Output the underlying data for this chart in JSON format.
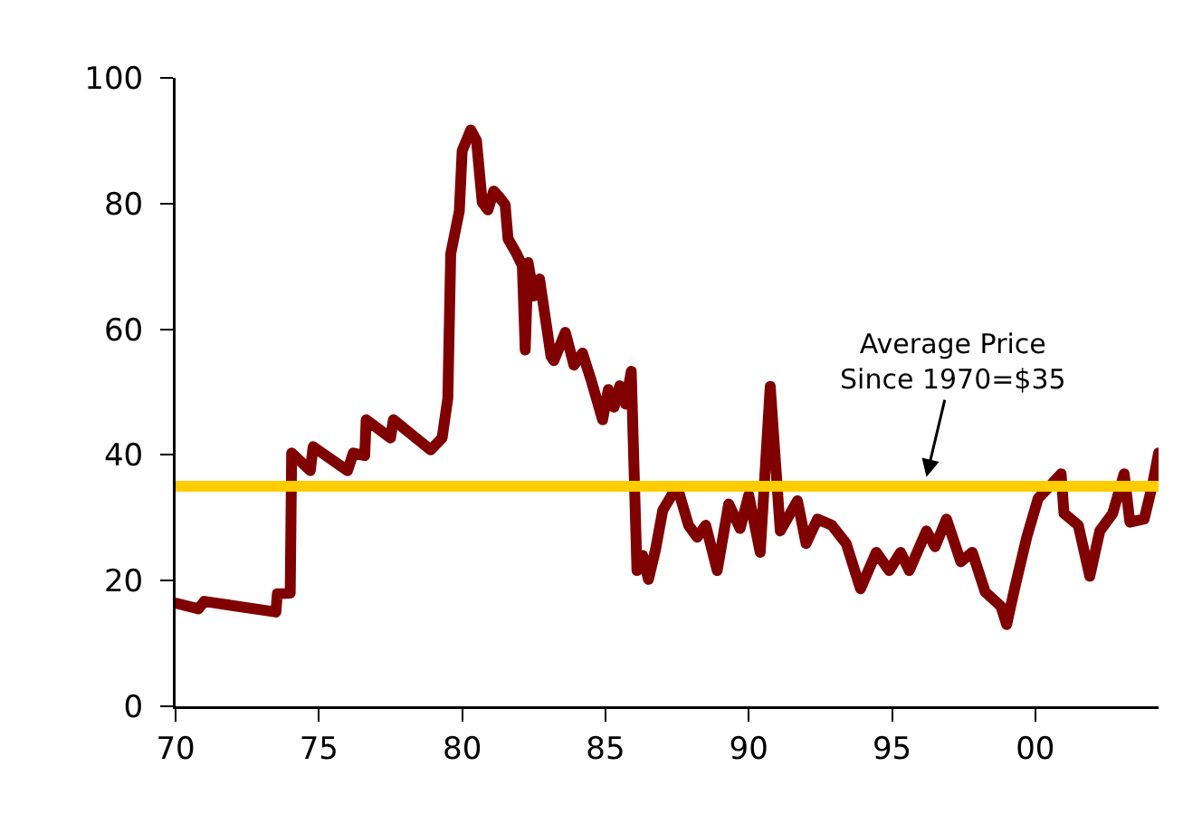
{
  "chart_data": {
    "type": "line",
    "x": [
      1970,
      1970.8,
      1971.0,
      1973.5,
      1973.55,
      1974.0,
      1974.05,
      1974.7,
      1974.8,
      1976.0,
      1976.2,
      1976.6,
      1976.65,
      1977.5,
      1977.6,
      1978.9,
      1979.3,
      1979.5,
      1979.6,
      1979.9,
      1980.0,
      1980.3,
      1980.5,
      1980.7,
      1980.9,
      1981.1,
      1981.3,
      1981.5,
      1981.6,
      1981.9,
      1982.1,
      1982.2,
      1982.3,
      1982.5,
      1982.7,
      1983.1,
      1983.2,
      1983.6,
      1983.9,
      1984.2,
      1984.5,
      1984.9,
      1985.1,
      1985.3,
      1985.5,
      1985.7,
      1985.9,
      1986.1,
      1986.3,
      1986.5,
      1986.75,
      1987.0,
      1987.5,
      1987.9,
      1988.2,
      1988.5,
      1988.9,
      1989.3,
      1989.7,
      1990.0,
      1990.4,
      1990.75,
      1991.1,
      1991.7,
      1992.0,
      1992.4,
      1992.9,
      1993.4,
      1993.9,
      1994.45,
      1994.9,
      1995.3,
      1995.6,
      1996.2,
      1996.5,
      1996.9,
      1997.4,
      1997.8,
      1998.25,
      1998.8,
      1999.0,
      1999.3,
      1999.7,
      2000.1,
      2000.6,
      2000.9,
      2001.0,
      2001.5,
      2001.9,
      2002.25,
      2002.7,
      2003.1,
      2003.3,
      2003.8,
      2004.1,
      2004.3
    ],
    "series": [
      {
        "color": "#800000",
        "values": [
          16.4,
          15.5,
          16.7,
          15,
          17.9,
          18,
          40.3,
          37.5,
          41.3,
          37.5,
          40.3,
          39.9,
          45.6,
          42.7,
          45.6,
          40.8,
          42.7,
          49,
          72,
          78.8,
          88.4,
          91.7,
          90,
          80.2,
          79,
          82,
          81,
          79.8,
          74.4,
          72,
          70.1,
          56.7,
          70.6,
          65.3,
          68,
          55.7,
          55,
          59.5,
          54.3,
          56.2,
          51.9,
          45.6,
          50.4,
          47.6,
          51,
          48.1,
          53.3,
          21.6,
          24,
          20.2,
          25,
          31.2,
          35,
          28.8,
          26.9,
          28.8,
          21.6,
          32.2,
          28.3,
          33.6,
          24.5,
          50.9,
          27.9,
          32.7,
          25.9,
          29.8,
          28.8,
          25.9,
          18.7,
          24.5,
          21.6,
          24.5,
          21.6,
          27.9,
          25.4,
          29.8,
          23,
          24.5,
          18.2,
          15.9,
          13,
          19.2,
          26.9,
          33.1,
          35.5,
          37,
          30.7,
          28.8,
          20.7,
          27.9,
          30.7,
          37,
          29.3,
          29.8,
          35.5,
          40.3
        ]
      }
    ],
    "xlim": [
      1970,
      2004.3
    ],
    "xticks": [
      {
        "value": 1970,
        "label": "70"
      },
      {
        "value": 1975,
        "label": "75"
      },
      {
        "value": 1980,
        "label": "80"
      },
      {
        "value": 1985,
        "label": "85"
      },
      {
        "value": 1990,
        "label": "90"
      },
      {
        "value": 1995,
        "label": "95"
      },
      {
        "value": 2000,
        "label": "00"
      }
    ],
    "ylim": [
      0,
      100
    ],
    "yticks": [
      0,
      20,
      40,
      60,
      80,
      100
    ],
    "grid": false,
    "ref_lines": [
      {
        "axis": "y",
        "value": 35,
        "color": "#ffcc00"
      }
    ],
    "annotations": [
      {
        "text": "Average Price\nSince 1970=$35",
        "x": 1996.2,
        "y": 36.5
      }
    ]
  }
}
